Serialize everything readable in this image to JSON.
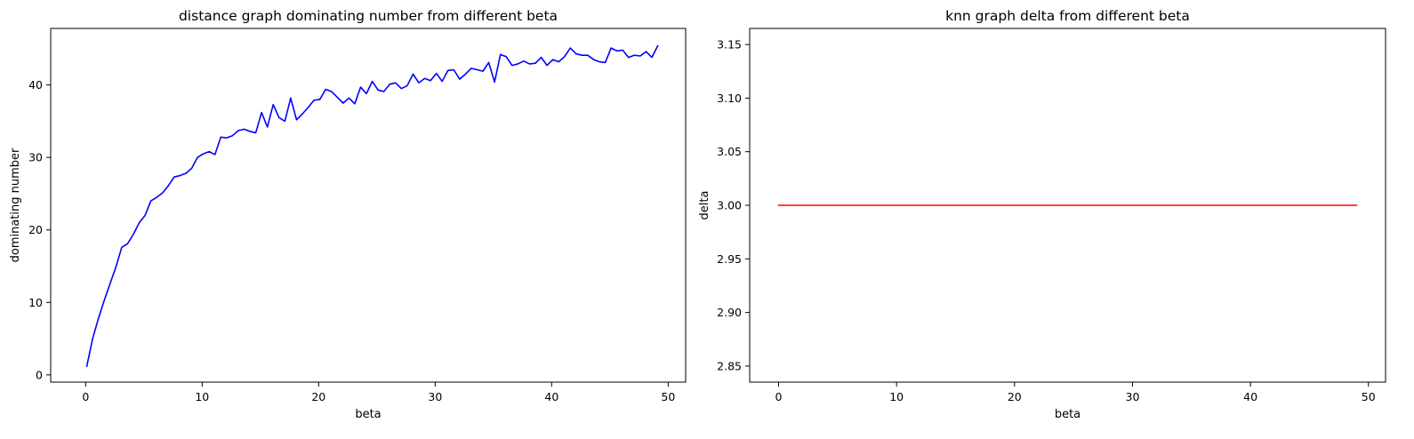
{
  "chart_data": [
    {
      "type": "line",
      "title": "distance graph dominating number from different beta",
      "xlabel": "beta",
      "ylabel": "dominating number",
      "xlim": [
        -3.0,
        51.5
      ],
      "ylim": [
        -1.0,
        47.8
      ],
      "xticks": [
        0,
        10,
        20,
        30,
        40,
        50
      ],
      "yticks": [
        0,
        10,
        20,
        30,
        40
      ],
      "xtick_labels": [
        "0",
        "10",
        "20",
        "30",
        "40",
        "50"
      ],
      "ytick_labels": [
        "0",
        "10",
        "20",
        "30",
        "40"
      ],
      "grid": false,
      "series": [
        {
          "color": "#0000ff",
          "x": [
            0.1,
            0.6,
            1.1,
            1.6,
            2.1,
            2.6,
            3.1,
            3.6,
            4.1,
            4.6,
            5.1,
            5.6,
            6.1,
            6.6,
            7.1,
            7.6,
            8.1,
            8.6,
            9.1,
            9.6,
            10.1,
            10.6,
            11.1,
            11.6,
            12.1,
            12.6,
            13.1,
            13.6,
            14.1,
            14.6,
            15.1,
            15.6,
            16.1,
            16.6,
            17.1,
            17.6,
            18.1,
            18.6,
            19.1,
            19.6,
            20.1,
            20.6,
            21.1,
            21.6,
            22.1,
            22.6,
            23.1,
            23.6,
            24.1,
            24.6,
            25.1,
            25.6,
            26.1,
            26.6,
            27.1,
            27.6,
            28.1,
            28.6,
            29.1,
            29.6,
            30.1,
            30.6,
            31.1,
            31.6,
            32.1,
            32.6,
            33.1,
            33.6,
            34.1,
            34.6,
            35.1,
            35.6,
            36.1,
            36.6,
            37.1,
            37.6,
            38.1,
            38.6,
            39.1,
            39.6,
            40.1,
            40.6,
            41.1,
            41.6,
            42.1,
            42.6,
            43.1,
            43.6,
            44.1,
            44.6,
            45.1,
            45.6,
            46.1,
            46.6,
            47.1,
            47.6,
            48.1,
            48.6,
            49.1
          ],
          "y": [
            1.2,
            5.0,
            7.8,
            10.3,
            12.6,
            14.9,
            17.6,
            18.1,
            19.4,
            21.0,
            22.0,
            24.0,
            24.5,
            25.1,
            26.1,
            27.3,
            27.5,
            27.8,
            28.5,
            30.0,
            30.5,
            30.8,
            30.4,
            32.8,
            32.7,
            33.0,
            33.7,
            33.9,
            33.6,
            33.4,
            36.2,
            34.2,
            37.3,
            35.5,
            35.0,
            38.2,
            35.2,
            36.0,
            36.9,
            37.9,
            38.0,
            39.4,
            39.1,
            38.3,
            37.5,
            38.2,
            37.4,
            39.7,
            38.8,
            40.5,
            39.3,
            39.1,
            40.1,
            40.3,
            39.5,
            39.9,
            41.5,
            40.3,
            40.9,
            40.6,
            41.6,
            40.5,
            42.0,
            42.1,
            40.8,
            41.5,
            42.3,
            42.1,
            41.9,
            43.1,
            40.4,
            44.2,
            43.9,
            42.7,
            42.9,
            43.3,
            42.9,
            43.0,
            43.8,
            42.7,
            43.5,
            43.2,
            43.9,
            45.1,
            44.3,
            44.1,
            44.1,
            43.5,
            43.2,
            43.1,
            45.1,
            44.7,
            44.8,
            43.8,
            44.1,
            44.0,
            44.6,
            43.8,
            45.4
          ]
        }
      ]
    },
    {
      "type": "line",
      "title": "knn graph delta from different beta",
      "xlabel": "beta",
      "ylabel": "delta",
      "xlim": [
        -2.45,
        51.45
      ],
      "ylim": [
        2.835,
        3.165
      ],
      "xticks": [
        0,
        10,
        20,
        30,
        40,
        50
      ],
      "yticks": [
        2.85,
        2.9,
        2.95,
        3.0,
        3.05,
        3.1,
        3.15
      ],
      "xtick_labels": [
        "0",
        "10",
        "20",
        "30",
        "40",
        "50"
      ],
      "ytick_labels": [
        "2.85",
        "2.90",
        "2.95",
        "3.00",
        "3.05",
        "3.10",
        "3.15"
      ],
      "grid": false,
      "series": [
        {
          "color": "#ff0000",
          "x": [
            0,
            49
          ],
          "y": [
            3.0,
            3.0
          ]
        }
      ]
    }
  ]
}
